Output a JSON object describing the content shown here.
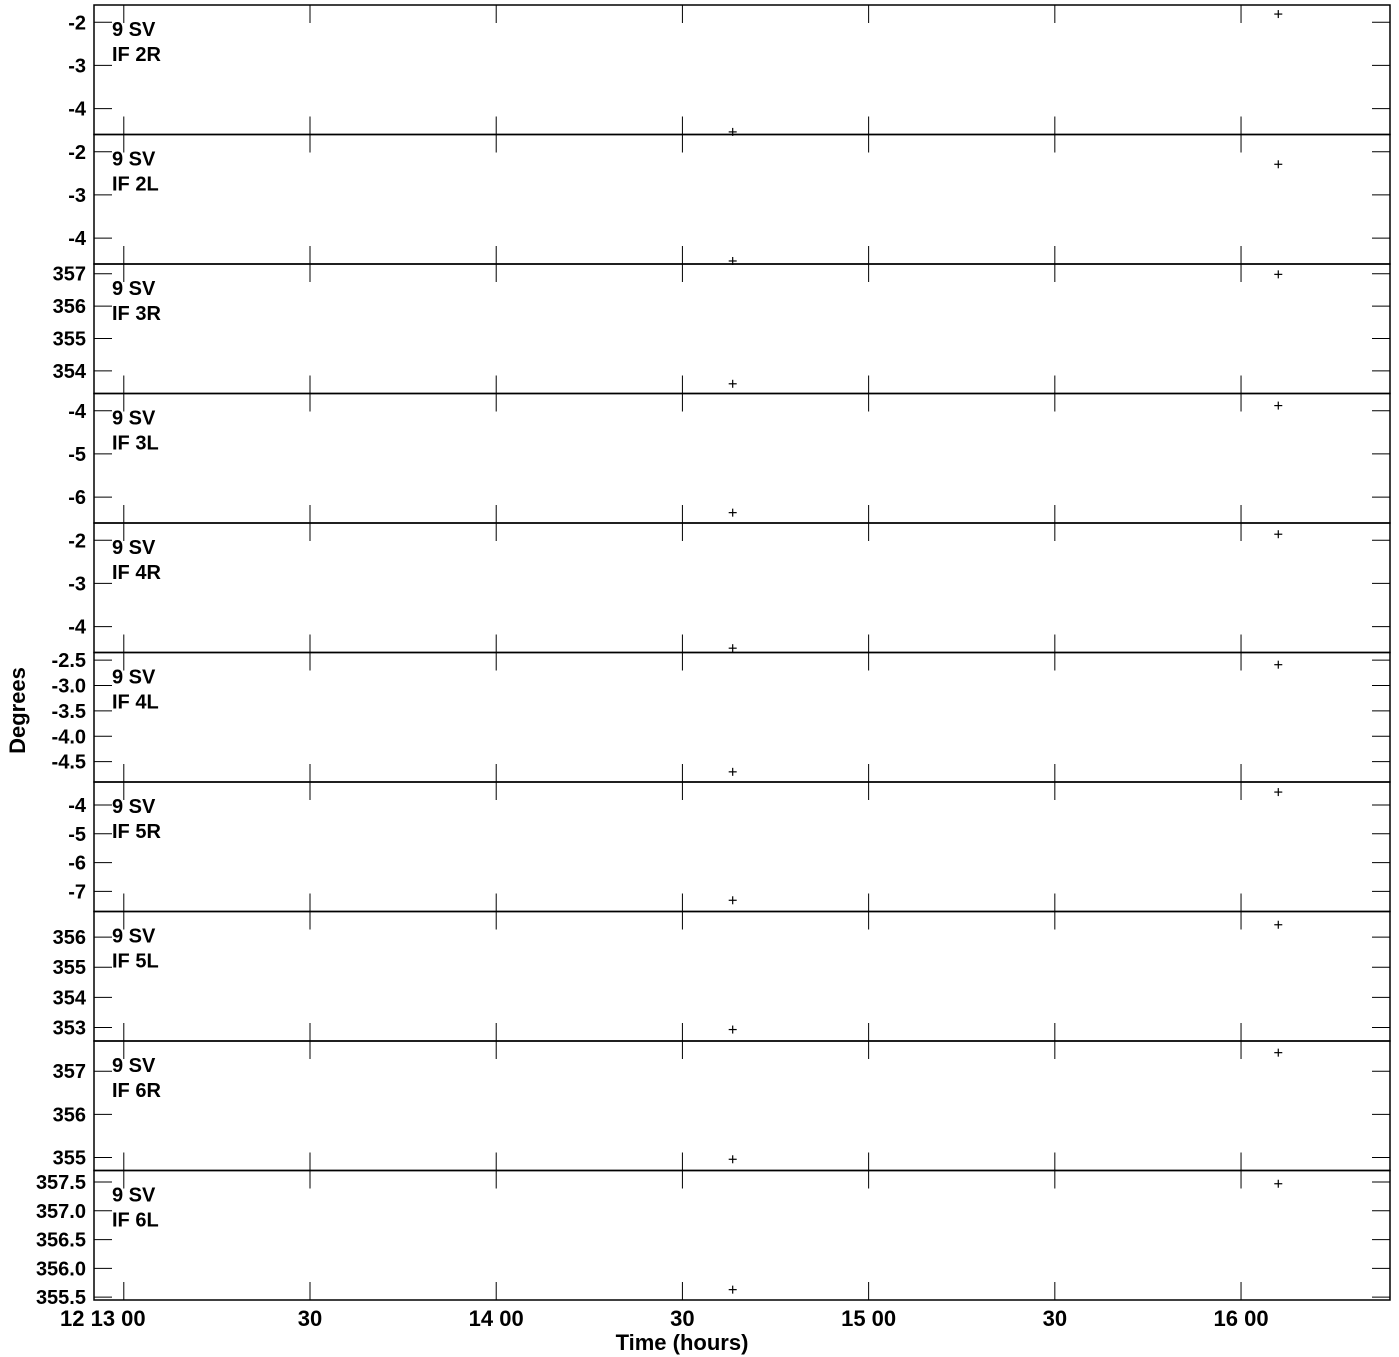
{
  "chart_data": {
    "type": "scatter",
    "xlabel": "Time (hours)",
    "ylabel": "Degrees",
    "x_tick_labels": [
      "12 13 00",
      "30",
      "14 00",
      "30",
      "15 00",
      "30",
      "16 00"
    ],
    "x_tick_hours": [
      13.0,
      13.5,
      14.0,
      14.5,
      15.0,
      15.5,
      16.0
    ],
    "xlim_hours": [
      12.92,
      16.4
    ],
    "marker": "+",
    "panels": [
      {
        "label1": "9 SV",
        "label2": "IF 2R",
        "ylim": [
          -4.6,
          -1.6
        ],
        "yticks": [
          -2,
          -3,
          -4
        ],
        "ytick_labels": [
          "-2",
          "-3",
          "-4"
        ],
        "points": [
          {
            "x": 14.635,
            "y": -4.54
          },
          {
            "x": 16.1,
            "y": -1.81
          }
        ]
      },
      {
        "label1": "9 SV",
        "label2": "IF 2L",
        "ylim": [
          -4.6,
          -1.6
        ],
        "yticks": [
          -2,
          -3,
          -4
        ],
        "ytick_labels": [
          "-2",
          "-3",
          "-4"
        ],
        "points": [
          {
            "x": 14.635,
            "y": -4.53
          },
          {
            "x": 16.1,
            "y": -2.29
          }
        ]
      },
      {
        "label1": "9 SV",
        "label2": "IF 3R",
        "ylim": [
          353.3,
          357.3
        ],
        "yticks": [
          357,
          356,
          355,
          354
        ],
        "ytick_labels": [
          "357",
          "356",
          "355",
          "354"
        ],
        "points": [
          {
            "x": 14.635,
            "y": 353.6
          },
          {
            "x": 16.1,
            "y": 356.98
          }
        ]
      },
      {
        "label1": "9 SV",
        "label2": "IF 3L",
        "ylim": [
          -6.6,
          -3.6
        ],
        "yticks": [
          -4,
          -5,
          -6
        ],
        "ytick_labels": [
          "-4",
          "-5",
          "-6"
        ],
        "points": [
          {
            "x": 14.635,
            "y": -6.36
          },
          {
            "x": 16.1,
            "y": -3.88
          }
        ]
      },
      {
        "label1": "9 SV",
        "label2": "IF 4R",
        "ylim": [
          -4.6,
          -1.6
        ],
        "yticks": [
          -2,
          -3,
          -4
        ],
        "ytick_labels": [
          "-2",
          "-3",
          "-4"
        ],
        "points": [
          {
            "x": 14.635,
            "y": -4.5
          },
          {
            "x": 16.1,
            "y": -1.86
          }
        ]
      },
      {
        "label1": "9 SV",
        "label2": "IF 4L",
        "ylim": [
          -4.9,
          -2.35
        ],
        "yticks": [
          -2.5,
          -3.0,
          -3.5,
          -4.0,
          -4.5
        ],
        "ytick_labels": [
          "-2.5",
          "-3.0",
          "-3.5",
          "-4.0",
          "-4.5"
        ],
        "points": [
          {
            "x": 14.635,
            "y": -4.7
          },
          {
            "x": 16.1,
            "y": -2.59
          }
        ]
      },
      {
        "label1": "9 SV",
        "label2": "IF 5R",
        "ylim": [
          -7.7,
          -3.2
        ],
        "yticks": [
          -4,
          -5,
          -6,
          -7
        ],
        "ytick_labels": [
          "-4",
          "-5",
          "-6",
          "-7"
        ],
        "points": [
          {
            "x": 14.635,
            "y": -7.31
          },
          {
            "x": 16.1,
            "y": -3.55
          }
        ]
      },
      {
        "label1": "9 SV",
        "label2": "IF 5L",
        "ylim": [
          352.55,
          356.85
        ],
        "yticks": [
          356,
          355,
          354,
          353
        ],
        "ytick_labels": [
          "356",
          "355",
          "354",
          "353"
        ],
        "points": [
          {
            "x": 14.635,
            "y": 352.93
          },
          {
            "x": 16.1,
            "y": 356.41
          }
        ]
      },
      {
        "label1": "9 SV",
        "label2": "IF 6R",
        "ylim": [
          354.7,
          357.7
        ],
        "yticks": [
          357,
          356,
          355
        ],
        "ytick_labels": [
          "357",
          "356",
          "355"
        ],
        "points": [
          {
            "x": 14.635,
            "y": 354.96
          },
          {
            "x": 16.1,
            "y": 357.43
          }
        ]
      },
      {
        "label1": "9 SV",
        "label2": "IF 6L",
        "ylim": [
          355.45,
          357.7
        ],
        "yticks": [
          357.5,
          357.0,
          356.5,
          356.0,
          355.5
        ],
        "ytick_labels": [
          "357.5",
          "357.0",
          "356.5",
          "356.0",
          "355.5"
        ],
        "points": [
          {
            "x": 14.635,
            "y": 355.63
          },
          {
            "x": 16.1,
            "y": 357.47
          }
        ]
      }
    ]
  }
}
